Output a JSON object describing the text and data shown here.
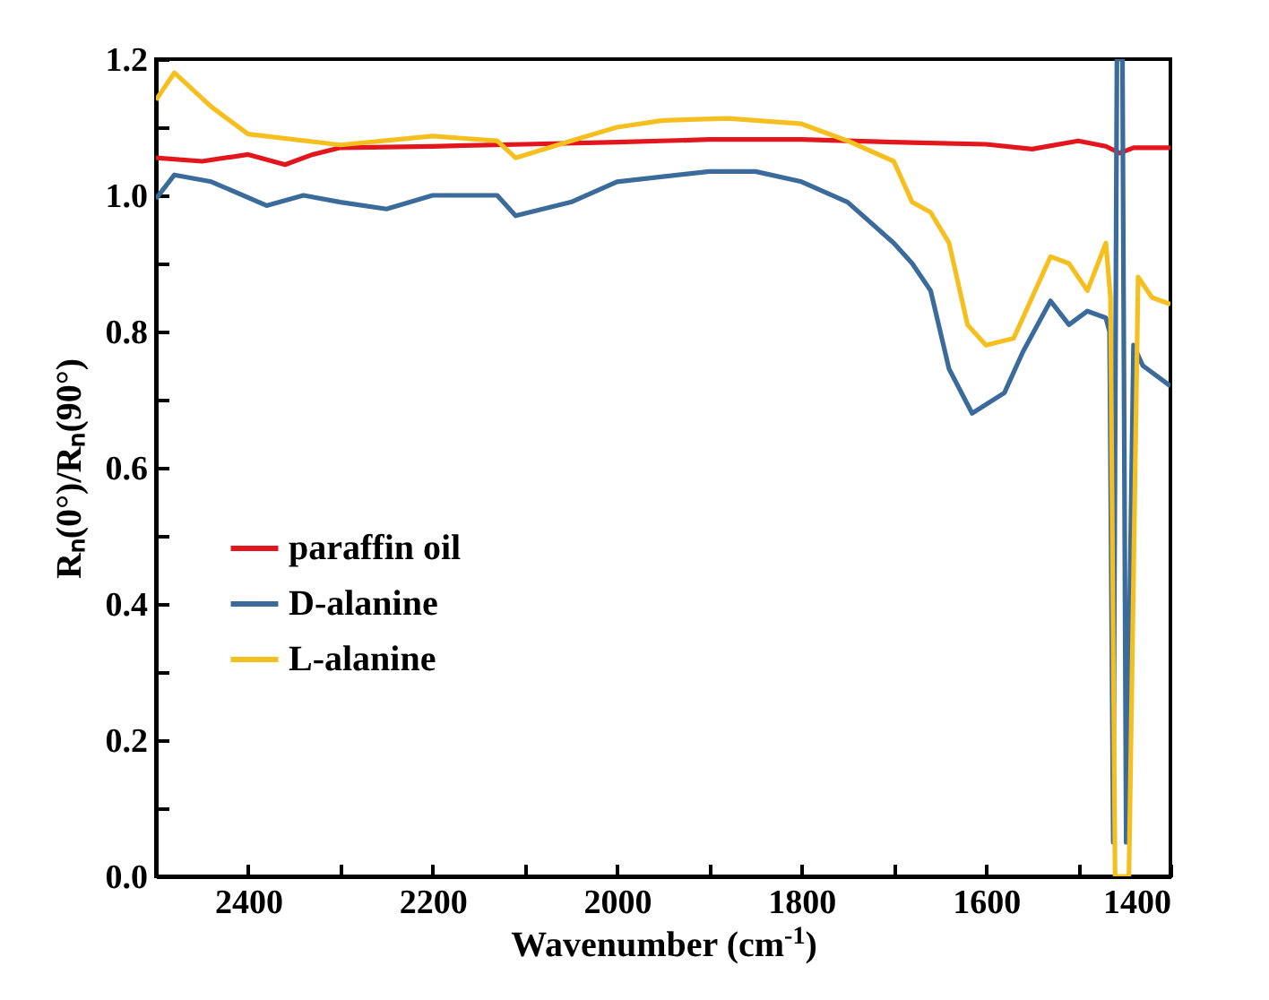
{
  "chart_data": {
    "type": "line",
    "xlabel": "Wavenumber (cm$^{-1}$)",
    "ylabel": "Rₙ(0°)/Rₙ(90°)",
    "xlim": [
      2500,
      1400
    ],
    "ylim": [
      0,
      1.2
    ],
    "xticks": [
      2400,
      {
        "value": 2300,
        "label": null
      },
      2200,
      {
        "value": 2100,
        "label": null
      },
      2000,
      {
        "value": 1900,
        "label": null
      },
      1800,
      {
        "value": 1700,
        "label": null
      },
      1600,
      {
        "value": 1500,
        "label": null
      },
      1400
    ],
    "yticks": [
      {
        "value": 0,
        "label": "0.0"
      },
      {
        "value": 0.1,
        "label": null
      },
      0.2,
      {
        "value": 0.3,
        "label": null
      },
      0.4,
      {
        "value": 0.5,
        "label": null
      },
      0.6,
      {
        "value": 0.7,
        "label": null
      },
      0.8,
      {
        "value": 0.9,
        "label": null
      },
      {
        "value": 1,
        "label": "1.0"
      },
      {
        "value": 1.1,
        "label": null
      },
      1.2
    ],
    "grid": false,
    "legend": "bottom left",
    "line_style": "solid",
    "series": [
      {
        "name": "paraffin oil",
        "color": "#e3161d",
        "x": [
          2500,
          2450,
          2400,
          2360,
          2330,
          2300,
          2200,
          2100,
          2000,
          1900,
          1800,
          1700,
          1600,
          1550,
          1500,
          1470,
          1455,
          1440,
          1400
        ],
        "values": [
          1.055,
          1.05,
          1.06,
          1.045,
          1.06,
          1.07,
          1.072,
          1.075,
          1.078,
          1.082,
          1.082,
          1.078,
          1.075,
          1.068,
          1.08,
          1.072,
          1.062,
          1.07,
          1.07
        ]
      },
      {
        "name": "D-alanine",
        "color": "#3a6b9a",
        "x": [
          2500,
          2480,
          2440,
          2380,
          2340,
          2300,
          2250,
          2200,
          2130,
          2110,
          2050,
          2000,
          1900,
          1850,
          1800,
          1750,
          1700,
          1680,
          1660,
          1640,
          1615,
          1580,
          1560,
          1530,
          1510,
          1490,
          1470,
          1466,
          1462,
          1458,
          1452,
          1448,
          1440,
          1430,
          1400
        ],
        "values": [
          0.995,
          1.03,
          1.02,
          0.985,
          1.0,
          0.99,
          0.98,
          1.0,
          1.0,
          0.97,
          0.99,
          1.02,
          1.035,
          1.035,
          1.02,
          0.99,
          0.93,
          0.9,
          0.86,
          0.745,
          0.68,
          0.71,
          0.77,
          0.845,
          0.81,
          0.83,
          0.82,
          0.8,
          0.05,
          1.2,
          1.2,
          0.05,
          0.78,
          0.75,
          0.72
        ]
      },
      {
        "name": "L-alanine",
        "color": "#f5c01f",
        "x": [
          2500,
          2480,
          2440,
          2400,
          2300,
          2200,
          2130,
          2110,
          2050,
          2000,
          1950,
          1880,
          1800,
          1750,
          1700,
          1680,
          1660,
          1640,
          1620,
          1600,
          1570,
          1550,
          1530,
          1510,
          1490,
          1470,
          1465,
          1460,
          1445,
          1435,
          1420,
          1400
        ],
        "values": [
          1.14,
          1.18,
          1.13,
          1.09,
          1.074,
          1.087,
          1.08,
          1.055,
          1.08,
          1.1,
          1.11,
          1.113,
          1.105,
          1.08,
          1.05,
          0.99,
          0.975,
          0.93,
          0.81,
          0.78,
          0.79,
          0.85,
          0.91,
          0.9,
          0.86,
          0.93,
          0.85,
          0.0,
          0.0,
          0.88,
          0.85,
          0.84
        ]
      }
    ]
  }
}
